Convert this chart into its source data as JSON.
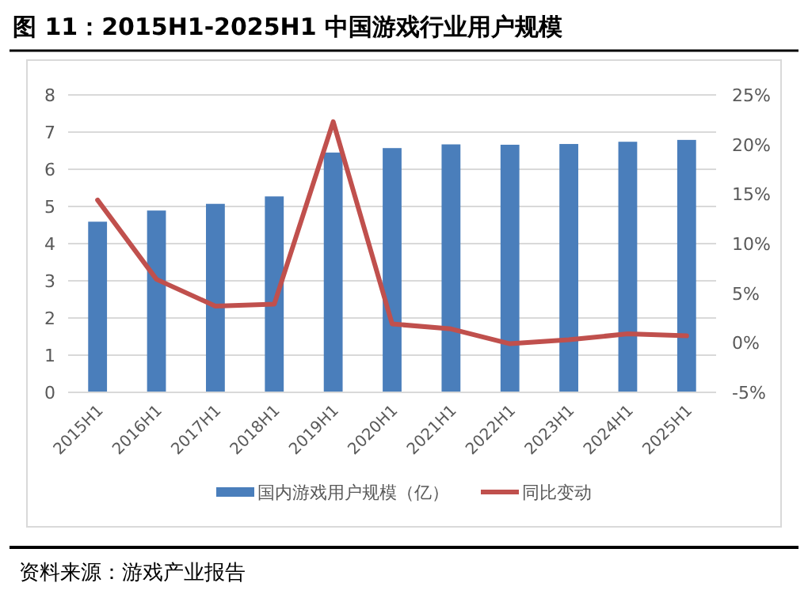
{
  "chart_data": {
    "type": "bar",
    "title": "图 11：2015H1-2025H1 中国游戏行业用户规模",
    "categories": [
      "2015H1",
      "2016H1",
      "2017H1",
      "2018H1",
      "2019H1",
      "2020H1",
      "2021H1",
      "2022H1",
      "2023H1",
      "2024H1",
      "2025H1"
    ],
    "series": [
      {
        "name": "国内游戏用户规模（亿）",
        "color": "#4a7ebb",
        "values": [
          4.59,
          4.89,
          5.07,
          5.27,
          6.45,
          6.57,
          6.67,
          6.66,
          6.68,
          6.74,
          6.79
        ]
      },
      {
        "name": "同比变动",
        "type": "line",
        "axis": "y2",
        "color": "#c0504d",
        "values": [
          14.4,
          6.4,
          3.7,
          3.9,
          22.3,
          1.9,
          1.4,
          -0.1,
          0.3,
          0.9,
          0.7
        ]
      }
    ],
    "ylim": [
      0,
      8
    ],
    "yticks": [
      0,
      1,
      2,
      3,
      4,
      5,
      6,
      7,
      8
    ],
    "y2lim": [
      -5,
      25
    ],
    "y2ticks": [
      {
        "value": -5,
        "label": "-5%"
      },
      {
        "value": 0,
        "label": "0%"
      },
      {
        "value": 5,
        "label": "5%"
      },
      {
        "value": 10,
        "label": "10%"
      },
      {
        "value": 15,
        "label": "15%"
      },
      {
        "value": 20,
        "label": "20%"
      },
      {
        "value": 25,
        "label": "25%"
      }
    ],
    "grid": "y",
    "legend": "bottom",
    "annotations": [
      "资料来源：游戏产业报告"
    ]
  }
}
